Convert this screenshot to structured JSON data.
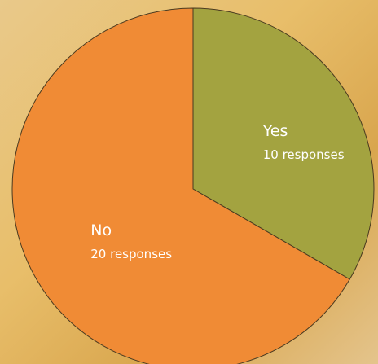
{
  "chart_data": {
    "type": "pie",
    "categories": [
      "Yes",
      "No"
    ],
    "values": [
      10,
      20
    ],
    "value_labels": [
      "10 responses",
      "20 responses"
    ],
    "colors": [
      "#a3a340",
      "#f08b35"
    ]
  }
}
